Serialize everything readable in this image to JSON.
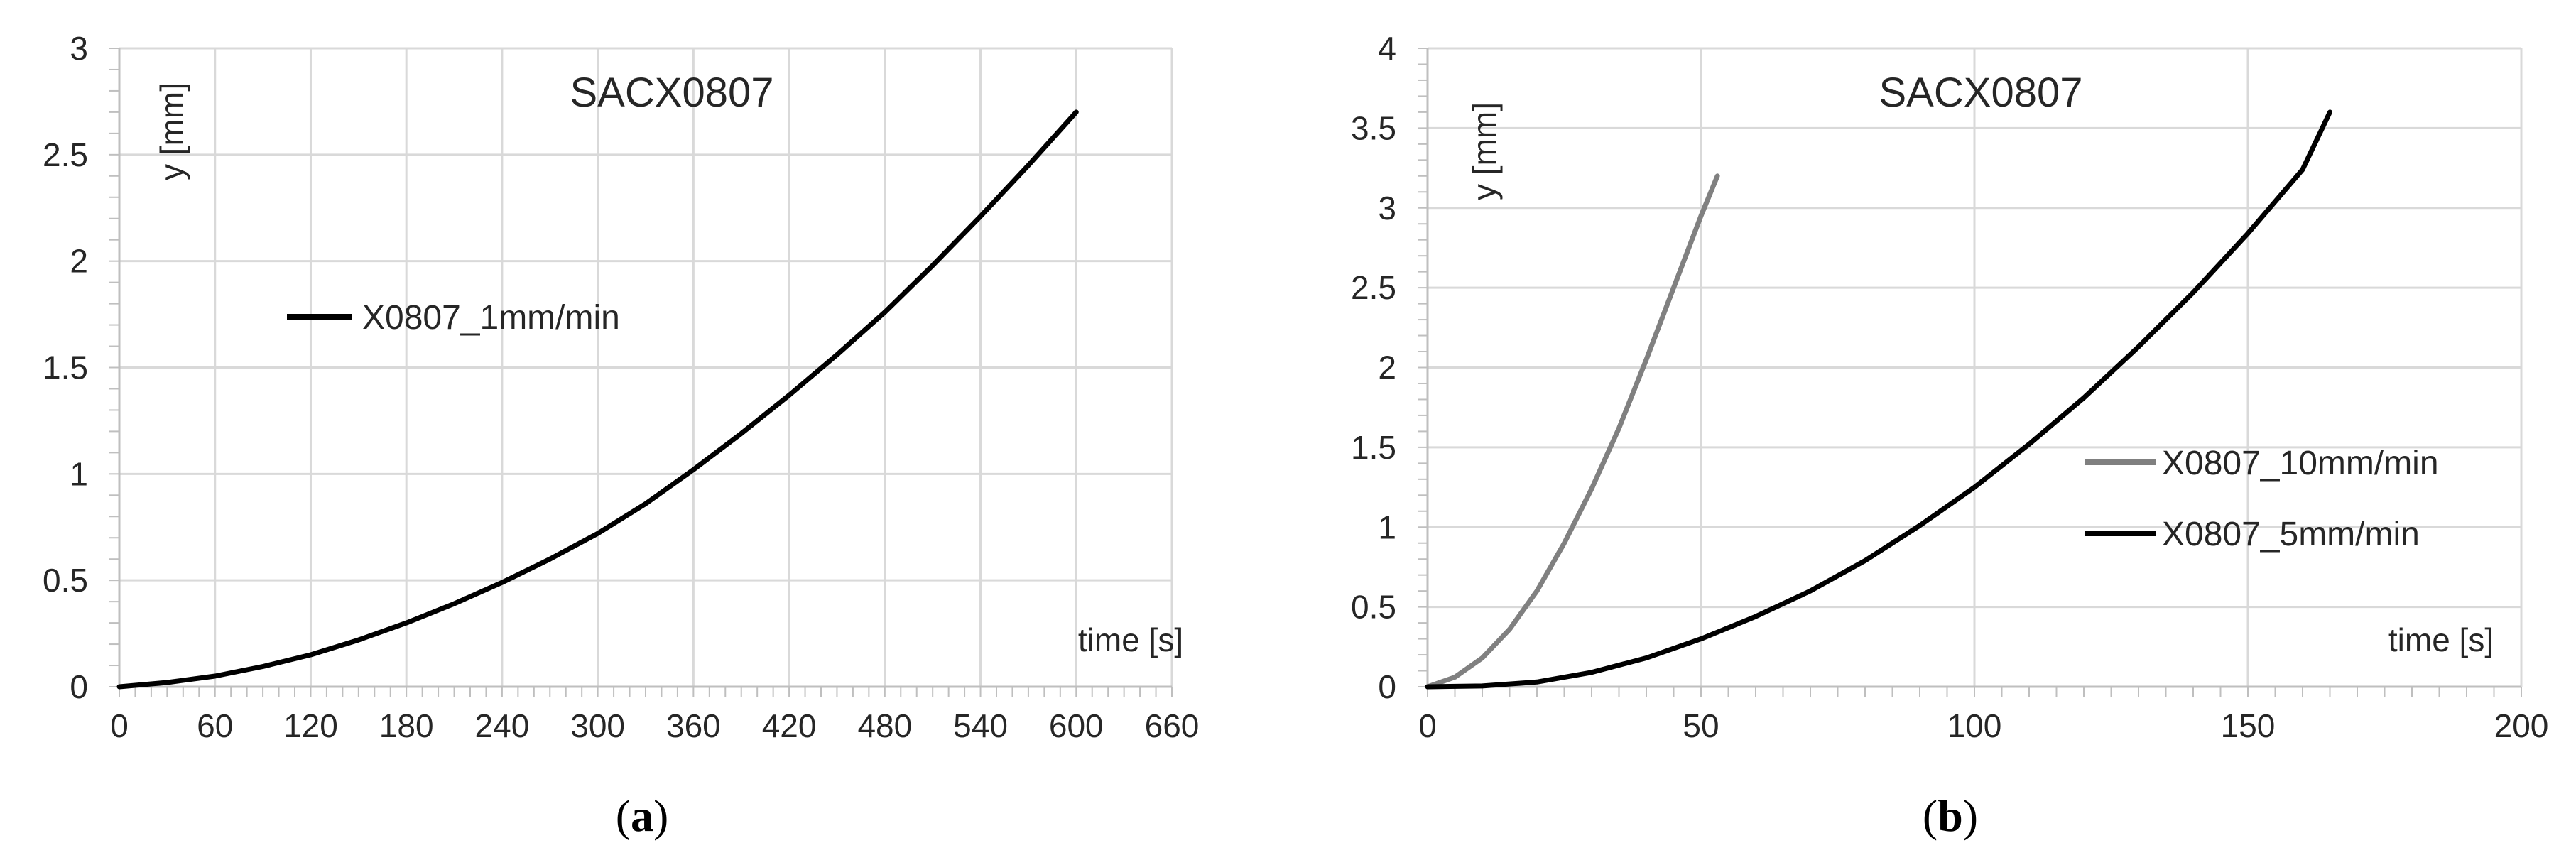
{
  "chart_data": [
    {
      "type": "line",
      "panel_label": "a",
      "title": "SACX0807",
      "xlabel": "time [s]",
      "ylabel": "y [mm]",
      "xlim": [
        0,
        660
      ],
      "ylim": [
        0,
        3
      ],
      "x_ticks": [
        0,
        60,
        120,
        180,
        240,
        300,
        360,
        420,
        480,
        540,
        600,
        660
      ],
      "y_ticks": [
        0,
        0.5,
        1,
        1.5,
        2,
        2.5,
        3
      ],
      "x_tick_labels": [
        "0",
        "60",
        "120",
        "180",
        "240",
        "300",
        "360",
        "420",
        "480",
        "540",
        "600",
        "660"
      ],
      "y_tick_labels": [
        "0",
        "0.5",
        "1",
        "1.5",
        "2",
        "2.5",
        "3"
      ],
      "grid": true,
      "legend_position": "upper-left",
      "series": [
        {
          "name": "X0807_1mm/min",
          "color": "#000000",
          "x": [
            0,
            30,
            60,
            90,
            120,
            150,
            180,
            210,
            240,
            270,
            300,
            330,
            360,
            390,
            420,
            450,
            480,
            510,
            540,
            570,
            600
          ],
          "y": [
            0,
            0.02,
            0.05,
            0.095,
            0.15,
            0.22,
            0.3,
            0.39,
            0.49,
            0.6,
            0.72,
            0.86,
            1.02,
            1.19,
            1.37,
            1.56,
            1.76,
            1.98,
            2.21,
            2.45,
            2.7
          ]
        }
      ]
    },
    {
      "type": "line",
      "panel_label": "b",
      "title": "SACX0807",
      "xlabel": "time [s]",
      "ylabel": "y [mm]",
      "xlim": [
        0,
        200
      ],
      "ylim": [
        0,
        4
      ],
      "x_ticks": [
        0,
        50,
        100,
        150,
        200
      ],
      "y_ticks": [
        0,
        0.5,
        1,
        1.5,
        2,
        2.5,
        3,
        3.5,
        4
      ],
      "x_tick_labels": [
        "0",
        "50",
        "100",
        "150",
        "200"
      ],
      "y_tick_labels": [
        "0",
        "0.5",
        "1",
        "1.5",
        "2",
        "2.5",
        "3",
        "3.5",
        "4"
      ],
      "grid": true,
      "legend_position": "center-right",
      "series": [
        {
          "name": "X0807_10mm/min",
          "color": "#808080",
          "x": [
            0,
            5,
            10,
            15,
            20,
            25,
            30,
            35,
            40,
            45,
            50,
            53
          ],
          "y": [
            0,
            0.06,
            0.18,
            0.36,
            0.6,
            0.9,
            1.24,
            1.62,
            2.05,
            2.5,
            2.95,
            3.2
          ]
        },
        {
          "name": "X0807_5mm/min",
          "color": "#000000",
          "x": [
            0,
            10,
            20,
            30,
            40,
            50,
            60,
            70,
            80,
            90,
            100,
            110,
            120,
            130,
            140,
            150,
            160,
            165
          ],
          "y": [
            0,
            0.005,
            0.03,
            0.09,
            0.18,
            0.3,
            0.44,
            0.6,
            0.79,
            1.01,
            1.25,
            1.52,
            1.81,
            2.13,
            2.47,
            2.84,
            3.24,
            3.6
          ]
        }
      ]
    }
  ]
}
